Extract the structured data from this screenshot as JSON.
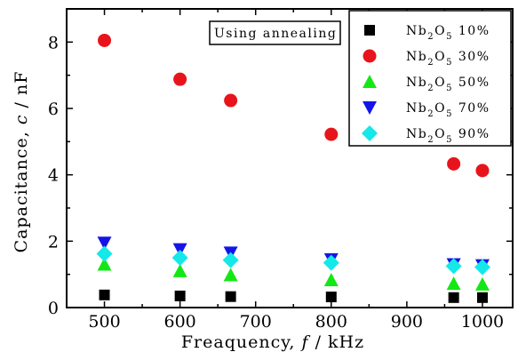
{
  "chart_data": {
    "type": "scatter",
    "xlabel": {
      "prefix": "Freaquency, ",
      "var": "f",
      "suffix": " / kHz"
    },
    "ylabel": {
      "prefix": "Capacitance, ",
      "var": "c",
      "suffix": " / nF"
    },
    "xlim": [
      450,
      1040
    ],
    "ylim": [
      0,
      9
    ],
    "x_ticks": [
      500,
      600,
      700,
      800,
      900,
      1000
    ],
    "y_ticks": [
      0,
      2,
      4,
      6,
      8
    ],
    "annotation": "Using annealing",
    "legend_position": "top-right",
    "series": [
      {
        "name": "Nb2O5 10%",
        "label_main": "Nb",
        "label_sub1": "2",
        "label_mid": "O",
        "label_sub2": "5",
        "label_pct": "10%",
        "marker": "square",
        "color": "#000000",
        "x": [
          500,
          600,
          667,
          800,
          962,
          1000
        ],
        "y": [
          0.38,
          0.35,
          0.33,
          0.32,
          0.3,
          0.3
        ]
      },
      {
        "name": "Nb2O5 30%",
        "label_main": "Nb",
        "label_sub1": "2",
        "label_mid": "O",
        "label_sub2": "5",
        "label_pct": "30%",
        "marker": "circle",
        "color": "#e8141c",
        "x": [
          500,
          600,
          667,
          800,
          962,
          1000
        ],
        "y": [
          8.05,
          6.88,
          6.24,
          5.22,
          4.33,
          4.13
        ]
      },
      {
        "name": "Nb2O5 50%",
        "label_main": "Nb",
        "label_sub1": "2",
        "label_mid": "O",
        "label_sub2": "5",
        "label_pct": "50%",
        "marker": "triangle-up",
        "color": "#14e814",
        "x": [
          500,
          600,
          667,
          800,
          962,
          1000
        ],
        "y": [
          1.3,
          1.1,
          0.98,
          0.83,
          0.72,
          0.7
        ]
      },
      {
        "name": "Nb2O5 70%",
        "label_main": "Nb",
        "label_sub1": "2",
        "label_mid": "O",
        "label_sub2": "5",
        "label_pct": "70%",
        "marker": "triangle-down",
        "color": "#1414e8",
        "x": [
          500,
          600,
          667,
          800,
          962,
          1000
        ],
        "y": [
          1.95,
          1.75,
          1.65,
          1.45,
          1.3,
          1.27
        ]
      },
      {
        "name": "Nb2O5 90%",
        "label_main": "Nb",
        "label_sub1": "2",
        "label_mid": "O",
        "label_sub2": "5",
        "label_pct": "90%",
        "marker": "diamond",
        "color": "#14e8e8",
        "x": [
          500,
          600,
          667,
          800,
          962,
          1000
        ],
        "y": [
          1.62,
          1.5,
          1.43,
          1.35,
          1.25,
          1.22
        ]
      }
    ]
  }
}
